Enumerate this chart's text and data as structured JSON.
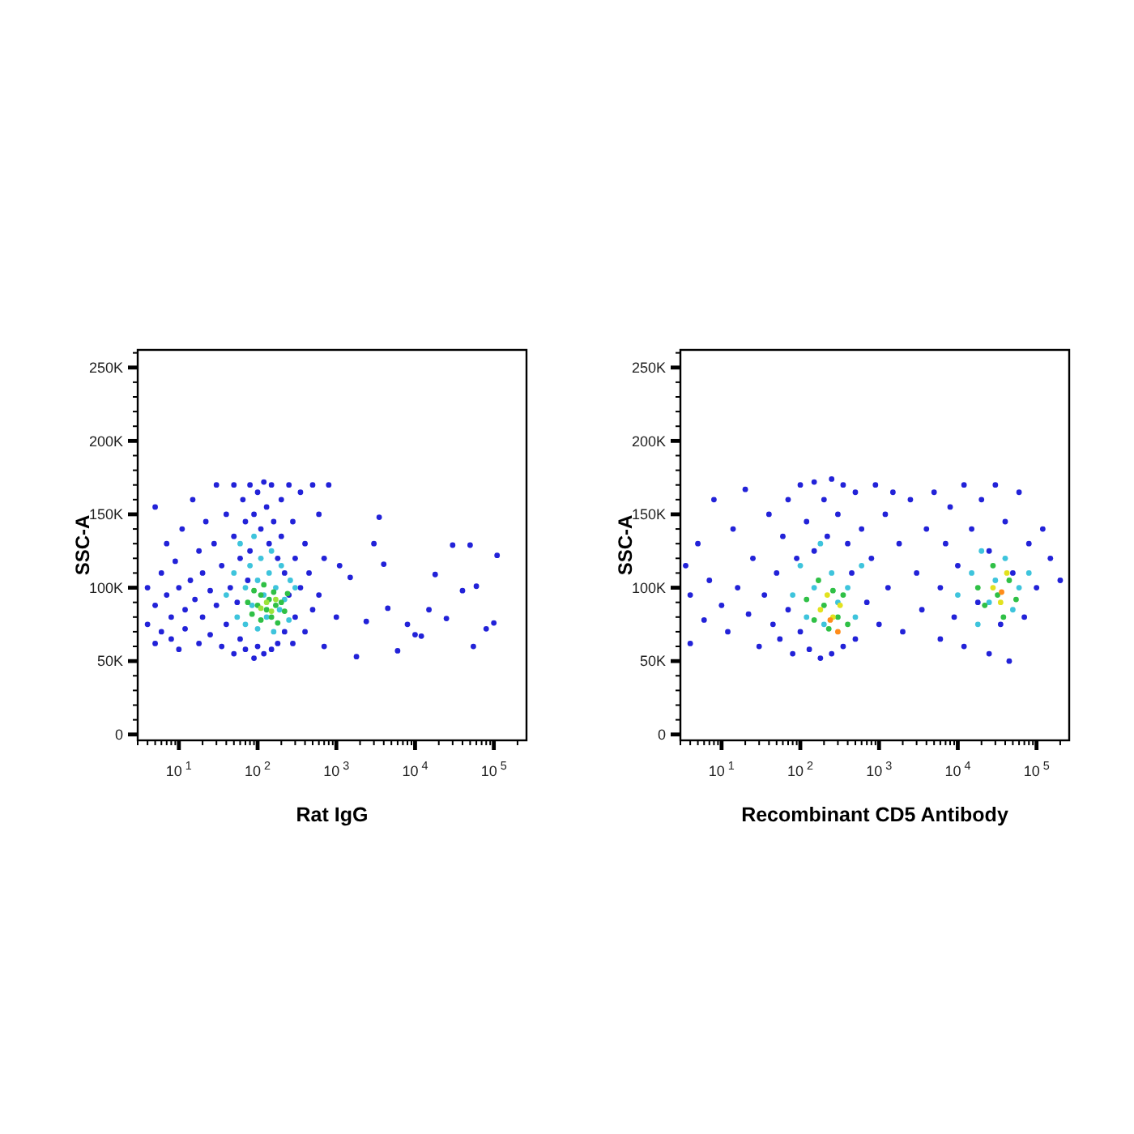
{
  "chart_data": [
    {
      "type": "scatter",
      "xlabel": "Rat IgG",
      "ylabel": "SSC-A",
      "log": "x",
      "marker": "circle",
      "xlim": [
        3,
        260000
      ],
      "ylim": [
        -4000,
        262000
      ],
      "xticks": [
        {
          "value": 3,
          "label": null
        },
        {
          "value": 4,
          "label": null
        },
        {
          "value": 5,
          "label": null
        },
        {
          "value": 6,
          "label": null
        },
        {
          "value": 7,
          "label": null
        },
        {
          "value": 8,
          "label": null
        },
        {
          "value": 9,
          "label": null
        },
        {
          "value": 10,
          "label": "10$^{1}$"
        },
        {
          "value": 20,
          "label": null
        },
        {
          "value": 30,
          "label": null
        },
        {
          "value": 40,
          "label": null
        },
        {
          "value": 50,
          "label": null
        },
        {
          "value": 60,
          "label": null
        },
        {
          "value": 70,
          "label": null
        },
        {
          "value": 80,
          "label": null
        },
        {
          "value": 90,
          "label": null
        },
        {
          "value": 100,
          "label": "10$^{2}$"
        },
        {
          "value": 200,
          "label": null
        },
        {
          "value": 300,
          "label": null
        },
        {
          "value": 400,
          "label": null
        },
        {
          "value": 500,
          "label": null
        },
        {
          "value": 600,
          "label": null
        },
        {
          "value": 700,
          "label": null
        },
        {
          "value": 800,
          "label": null
        },
        {
          "value": 900,
          "label": null
        },
        {
          "value": 1000,
          "label": "10$^{3}$"
        },
        {
          "value": 2000,
          "label": null
        },
        {
          "value": 3000,
          "label": null
        },
        {
          "value": 4000,
          "label": null
        },
        {
          "value": 5000,
          "label": null
        },
        {
          "value": 6000,
          "label": null
        },
        {
          "value": 7000,
          "label": null
        },
        {
          "value": 8000,
          "label": null
        },
        {
          "value": 9000,
          "label": null
        },
        {
          "value": 10000,
          "label": "10$^{4}$"
        },
        {
          "value": 20000,
          "label": null
        },
        {
          "value": 30000,
          "label": null
        },
        {
          "value": 40000,
          "label": null
        },
        {
          "value": 50000,
          "label": null
        },
        {
          "value": 60000,
          "label": null
        },
        {
          "value": 70000,
          "label": null
        },
        {
          "value": 80000,
          "label": null
        },
        {
          "value": 90000,
          "label": null
        },
        {
          "value": 100000,
          "label": "10$^{5}$"
        },
        {
          "value": 200000,
          "label": null
        }
      ],
      "yticks": [
        0,
        {
          "value": 10000,
          "label": null
        },
        {
          "value": 20000,
          "label": null
        },
        {
          "value": 30000,
          "label": null
        },
        {
          "value": 40000,
          "label": null
        },
        {
          "value": 50000,
          "label": "50K"
        },
        {
          "value": 60000,
          "label": null
        },
        {
          "value": 70000,
          "label": null
        },
        {
          "value": 80000,
          "label": null
        },
        {
          "value": 90000,
          "label": null
        },
        {
          "value": 100000,
          "label": "100K"
        },
        {
          "value": 110000,
          "label": null
        },
        {
          "value": 120000,
          "label": null
        },
        {
          "value": 130000,
          "label": null
        },
        {
          "value": 140000,
          "label": null
        },
        {
          "value": 150000,
          "label": "150K"
        },
        {
          "value": 160000,
          "label": null
        },
        {
          "value": 170000,
          "label": null
        },
        {
          "value": 180000,
          "label": null
        },
        {
          "value": 190000,
          "label": null
        },
        {
          "value": 200000,
          "label": "200K"
        },
        {
          "value": 210000,
          "label": null
        },
        {
          "value": 220000,
          "label": null
        },
        {
          "value": 230000,
          "label": null
        },
        {
          "value": 240000,
          "label": null
        },
        {
          "value": 250000,
          "label": "250K"
        },
        {
          "value": 260000,
          "label": null
        }
      ],
      "series": [
        {
          "color": "#2222d8",
          "x": [
            4,
            4,
            5,
            5,
            5,
            6,
            6,
            7,
            7,
            8,
            8,
            9,
            10,
            10,
            11,
            12,
            12,
            14,
            15,
            16,
            18,
            18,
            20,
            20,
            22,
            25,
            25,
            28,
            30,
            30,
            35,
            35,
            40,
            40,
            45,
            50,
            50,
            50,
            55,
            60,
            60,
            65,
            70,
            70,
            75,
            80,
            80,
            90,
            90,
            100,
            100,
            110,
            120,
            120,
            130,
            140,
            150,
            150,
            160,
            180,
            180,
            200,
            200,
            220,
            220,
            250,
            250,
            280,
            280,
            300,
            300,
            350,
            350,
            400,
            400,
            450,
            500,
            500,
            600,
            600,
            700,
            700,
            800,
            1000,
            1100,
            1500,
            1800,
            2400,
            3000,
            3500,
            4000,
            4500,
            6000,
            8000,
            10000,
            12000,
            15000,
            18000,
            25000,
            30000,
            40000,
            50000,
            55000,
            60000,
            80000,
            100000,
            110000
          ],
          "values": [
            75000,
            100000,
            62000,
            88000,
            155000,
            110000,
            70000,
            95000,
            130000,
            80000,
            65000,
            118000,
            100000,
            58000,
            140000,
            85000,
            72000,
            105000,
            160000,
            92000,
            62000,
            125000,
            80000,
            110000,
            145000,
            68000,
            98000,
            130000,
            88000,
            170000,
            60000,
            115000,
            150000,
            75000,
            100000,
            170000,
            55000,
            135000,
            90000,
            120000,
            65000,
            160000,
            145000,
            58000,
            105000,
            170000,
            125000,
            52000,
            150000,
            165000,
            60000,
            140000,
            172000,
            55000,
            155000,
            130000,
            170000,
            58000,
            145000,
            120000,
            62000,
            160000,
            135000,
            110000,
            70000,
            170000,
            95000,
            145000,
            62000,
            120000,
            80000,
            165000,
            100000,
            130000,
            70000,
            110000,
            170000,
            85000,
            150000,
            95000,
            120000,
            60000,
            170000,
            80000,
            115000,
            107000,
            53000,
            77000,
            130000,
            148000,
            116000,
            86000,
            57000,
            75000,
            68000,
            67000,
            85000,
            109000,
            79000,
            129000,
            98000,
            129000,
            60000,
            101000,
            72000,
            76000,
            122000
          ]
        },
        {
          "color": "#3ec4dc",
          "x": [
            40,
            50,
            55,
            60,
            70,
            70,
            80,
            85,
            90,
            100,
            100,
            110,
            120,
            130,
            140,
            150,
            160,
            170,
            190,
            200,
            220,
            250,
            260,
            300
          ],
          "values": [
            95000,
            110000,
            80000,
            130000,
            100000,
            75000,
            115000,
            88000,
            135000,
            105000,
            72000,
            120000,
            95000,
            80000,
            110000,
            125000,
            70000,
            100000,
            85000,
            115000,
            92000,
            78000,
            105000,
            100000
          ]
        },
        {
          "color": "#2fc046",
          "x": [
            75,
            85,
            90,
            100,
            110,
            110,
            120,
            130,
            140,
            150,
            160,
            170,
            180,
            200,
            220,
            240
          ],
          "values": [
            90000,
            82000,
            98000,
            88000,
            78000,
            95000,
            102000,
            85000,
            92000,
            80000,
            97000,
            88000,
            76000,
            90000,
            84000,
            96000
          ]
        },
        {
          "color": "#9be33a",
          "x": [
            110,
            130,
            150,
            170
          ],
          "values": [
            86000,
            90000,
            84000,
            92000
          ]
        }
      ]
    },
    {
      "type": "scatter",
      "xlabel": "Recombinant CD5 Antibody",
      "ylabel": "SSC-A",
      "log": "x",
      "marker": "circle",
      "xlim": [
        3,
        260000
      ],
      "ylim": [
        -4000,
        262000
      ],
      "xticks": [
        {
          "value": 3,
          "label": null
        },
        {
          "value": 4,
          "label": null
        },
        {
          "value": 5,
          "label": null
        },
        {
          "value": 6,
          "label": null
        },
        {
          "value": 7,
          "label": null
        },
        {
          "value": 8,
          "label": null
        },
        {
          "value": 9,
          "label": null
        },
        {
          "value": 10,
          "label": "10$^{1}$"
        },
        {
          "value": 20,
          "label": null
        },
        {
          "value": 30,
          "label": null
        },
        {
          "value": 40,
          "label": null
        },
        {
          "value": 50,
          "label": null
        },
        {
          "value": 60,
          "label": null
        },
        {
          "value": 70,
          "label": null
        },
        {
          "value": 80,
          "label": null
        },
        {
          "value": 90,
          "label": null
        },
        {
          "value": 100,
          "label": "10$^{2}$"
        },
        {
          "value": 200,
          "label": null
        },
        {
          "value": 300,
          "label": null
        },
        {
          "value": 400,
          "label": null
        },
        {
          "value": 500,
          "label": null
        },
        {
          "value": 600,
          "label": null
        },
        {
          "value": 700,
          "label": null
        },
        {
          "value": 800,
          "label": null
        },
        {
          "value": 900,
          "label": null
        },
        {
          "value": 1000,
          "label": "10$^{3}$"
        },
        {
          "value": 2000,
          "label": null
        },
        {
          "value": 3000,
          "label": null
        },
        {
          "value": 4000,
          "label": null
        },
        {
          "value": 5000,
          "label": null
        },
        {
          "value": 6000,
          "label": null
        },
        {
          "value": 7000,
          "label": null
        },
        {
          "value": 8000,
          "label": null
        },
        {
          "value": 9000,
          "label": null
        },
        {
          "value": 10000,
          "label": "10$^{4}$"
        },
        {
          "value": 20000,
          "label": null
        },
        {
          "value": 30000,
          "label": null
        },
        {
          "value": 40000,
          "label": null
        },
        {
          "value": 50000,
          "label": null
        },
        {
          "value": 60000,
          "label": null
        },
        {
          "value": 70000,
          "label": null
        },
        {
          "value": 80000,
          "label": null
        },
        {
          "value": 90000,
          "label": null
        },
        {
          "value": 100000,
          "label": "10$^{5}$"
        },
        {
          "value": 200000,
          "label": null
        }
      ],
      "yticks": [
        0,
        {
          "value": 10000,
          "label": null
        },
        {
          "value": 20000,
          "label": null
        },
        {
          "value": 30000,
          "label": null
        },
        {
          "value": 40000,
          "label": null
        },
        {
          "value": 50000,
          "label": "50K"
        },
        {
          "value": 60000,
          "label": null
        },
        {
          "value": 70000,
          "label": null
        },
        {
          "value": 80000,
          "label": null
        },
        {
          "value": 90000,
          "label": null
        },
        {
          "value": 100000,
          "label": "100K"
        },
        {
          "value": 110000,
          "label": null
        },
        {
          "value": 120000,
          "label": null
        },
        {
          "value": 130000,
          "label": null
        },
        {
          "value": 140000,
          "label": null
        },
        {
          "value": 150000,
          "label": "150K"
        },
        {
          "value": 160000,
          "label": null
        },
        {
          "value": 170000,
          "label": null
        },
        {
          "value": 180000,
          "label": null
        },
        {
          "value": 190000,
          "label": null
        },
        {
          "value": 200000,
          "label": "200K"
        },
        {
          "value": 210000,
          "label": null
        },
        {
          "value": 220000,
          "label": null
        },
        {
          "value": 230000,
          "label": null
        },
        {
          "value": 240000,
          "label": null
        },
        {
          "value": 250000,
          "label": "250K"
        },
        {
          "value": 260000,
          "label": null
        }
      ],
      "series": [
        {
          "color": "#2222d8",
          "x": [
            3.5,
            4,
            4,
            5,
            6,
            7,
            8,
            10,
            12,
            14,
            16,
            20,
            22,
            25,
            30,
            35,
            40,
            45,
            50,
            55,
            60,
            70,
            70,
            80,
            90,
            100,
            100,
            120,
            130,
            150,
            150,
            180,
            200,
            220,
            250,
            250,
            300,
            350,
            350,
            400,
            450,
            500,
            500,
            600,
            700,
            800,
            900,
            1000,
            1200,
            1300,
            1500,
            1800,
            2000,
            2500,
            3000,
            3500,
            4000,
            5000,
            6000,
            6000,
            7000,
            8000,
            9000,
            10000,
            12000,
            12000,
            15000,
            18000,
            20000,
            25000,
            25000,
            30000,
            35000,
            40000,
            45000,
            50000,
            60000,
            70000,
            80000,
            100000,
            120000,
            150000,
            200000
          ],
          "values": [
            115000,
            62000,
            95000,
            130000,
            78000,
            105000,
            160000,
            88000,
            70000,
            140000,
            100000,
            167000,
            82000,
            120000,
            60000,
            95000,
            150000,
            75000,
            110000,
            65000,
            135000,
            85000,
            160000,
            55000,
            120000,
            170000,
            70000,
            145000,
            58000,
            172000,
            125000,
            52000,
            160000,
            135000,
            174000,
            55000,
            150000,
            170000,
            60000,
            130000,
            110000,
            165000,
            65000,
            140000,
            90000,
            120000,
            170000,
            75000,
            150000,
            100000,
            165000,
            130000,
            70000,
            160000,
            110000,
            85000,
            140000,
            165000,
            100000,
            65000,
            130000,
            155000,
            80000,
            115000,
            60000,
            170000,
            140000,
            90000,
            160000,
            55000,
            125000,
            170000,
            75000,
            145000,
            50000,
            110000,
            165000,
            80000,
            130000,
            100000,
            140000,
            120000,
            105000
          ]
        },
        {
          "color": "#3ec4dc",
          "x": [
            80,
            100,
            120,
            150,
            180,
            200,
            250,
            300,
            400,
            500,
            600,
            10000,
            15000,
            18000,
            20000,
            25000,
            30000,
            40000,
            50000,
            60000,
            80000
          ],
          "values": [
            95000,
            115000,
            80000,
            100000,
            130000,
            75000,
            110000,
            90000,
            100000,
            80000,
            115000,
            95000,
            110000,
            75000,
            125000,
            90000,
            105000,
            120000,
            85000,
            100000,
            110000
          ]
        },
        {
          "color": "#2fc046",
          "x": [
            120,
            150,
            170,
            200,
            230,
            260,
            300,
            350,
            400,
            18000,
            22000,
            28000,
            32000,
            38000,
            45000,
            55000
          ],
          "values": [
            92000,
            78000,
            105000,
            88000,
            72000,
            98000,
            80000,
            95000,
            75000,
            100000,
            88000,
            115000,
            95000,
            80000,
            105000,
            92000
          ]
        },
        {
          "color": "#e2e21e",
          "x": [
            180,
            220,
            260,
            320,
            28000,
            35000,
            42000
          ],
          "values": [
            85000,
            95000,
            80000,
            88000,
            100000,
            90000,
            110000
          ]
        },
        {
          "color": "#ff8c1a",
          "x": [
            240,
            300,
            36000
          ],
          "values": [
            78000,
            70000,
            97000
          ]
        }
      ]
    }
  ]
}
